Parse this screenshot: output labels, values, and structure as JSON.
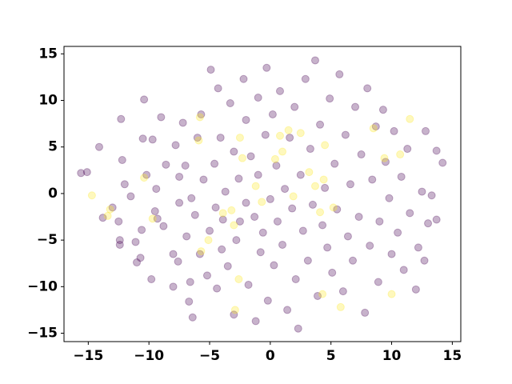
{
  "chart_data": {
    "type": "scatter",
    "xlim": [
      -17,
      15.7
    ],
    "ylim": [
      -15.9,
      15.8
    ],
    "xticks": [
      {
        "value": -15,
        "label": "−15"
      },
      {
        "value": -10,
        "label": "−10"
      },
      {
        "value": -5,
        "label": "−5"
      },
      0,
      5,
      10,
      15
    ],
    "yticks": [
      {
        "value": -15,
        "label": "−15"
      },
      {
        "value": -10,
        "label": "−10"
      },
      {
        "value": -5,
        "label": "−5"
      },
      0,
      5,
      10,
      15
    ],
    "opacity": 0.3,
    "series": [
      {
        "color": "#440154",
        "x": [
          -15.6,
          -15.1,
          -14.1,
          -13.8,
          -13,
          -12.5,
          -12.4,
          -12.4,
          -12.2,
          -12.3,
          -12,
          -11.5,
          -11.1,
          -11,
          -10.6,
          -10.7,
          -10.4,
          -10.5,
          -10.2,
          -9.8,
          -9.7,
          -9.5,
          -9.4,
          -9.3,
          -9,
          -8.8,
          -8.6,
          -8,
          -8,
          -7.8,
          -7.6,
          -7.5,
          -7.5,
          -7.2,
          -7,
          -6.9,
          -6.7,
          -6.6,
          -6.5,
          -6.4,
          -6.2,
          -6,
          -5.8,
          -5.7,
          -5.5,
          -5.2,
          -5,
          -4.9,
          -4.6,
          -4.5,
          -4.4,
          -4.3,
          -4.1,
          -4,
          -3.9,
          -3.7,
          -3.5,
          -3.3,
          -3,
          -3,
          -2.8,
          -2.6,
          -2.5,
          -2.2,
          -2,
          -2,
          -1.8,
          -1.6,
          -1.3,
          -1.2,
          -1,
          -1,
          -0.8,
          -0.6,
          -0.4,
          -0.3,
          -0.2,
          0,
          0.2,
          0.3,
          0.5,
          0.6,
          0.8,
          1,
          1.2,
          1.4,
          1.6,
          1.8,
          2,
          2.1,
          2.3,
          2.5,
          2.7,
          2.9,
          3.1,
          3.3,
          3.5,
          3.7,
          3.9,
          4.1,
          4.3,
          4.5,
          4.7,
          4.9,
          5.1,
          5.3,
          5.5,
          5.7,
          6,
          6.2,
          6.4,
          6.6,
          6.8,
          7,
          7.3,
          7.5,
          7.8,
          8,
          8.2,
          8.4,
          8.7,
          8.9,
          9,
          9.3,
          9.5,
          9.8,
          10,
          10.2,
          10.5,
          10.8,
          11,
          11.3,
          11.5,
          12,
          12.2,
          12.5,
          12.8,
          13,
          13.3,
          13.7,
          14.2,
          12.7,
          13.7
        ],
        "values": [
          2.2,
          2.3,
          5,
          -2.6,
          -1.5,
          -3,
          -5,
          -5.5,
          3.6,
          8,
          1,
          -0.3,
          -5.2,
          -7.4,
          -3.9,
          -6.9,
          10.1,
          5.9,
          2,
          -9.2,
          5.8,
          -1.9,
          0.5,
          -2.7,
          8.2,
          -3.5,
          3.1,
          -6.5,
          -10,
          5.2,
          -7.3,
          1.8,
          -1,
          7.6,
          3,
          -4.6,
          -11.6,
          -9.5,
          -0.5,
          -13.3,
          -2.3,
          6,
          -6.5,
          8.5,
          1.5,
          -8.8,
          -4,
          13.3,
          3.2,
          -1.5,
          -10.2,
          11.3,
          6,
          -6,
          -2.8,
          0.2,
          -7.8,
          9.7,
          -13,
          4.5,
          -5,
          1.6,
          -3,
          12.3,
          7.9,
          -1,
          -9.8,
          4,
          -2.5,
          -13.7,
          10.3,
          2,
          -6.3,
          -4.2,
          6.3,
          13.5,
          -11.5,
          -0.6,
          8.5,
          -7.7,
          3,
          -3,
          11,
          -5.5,
          0.5,
          -12.5,
          6,
          -1.6,
          9.3,
          -9.2,
          -14.5,
          2,
          -4,
          12.3,
          -7.2,
          4.8,
          -1.2,
          14.3,
          -11,
          7.4,
          -3.4,
          0.6,
          -5.8,
          10.2,
          -8.5,
          3.2,
          -1.7,
          12.8,
          -10.5,
          6.3,
          -4.6,
          1,
          -7.2,
          9.3,
          -2.5,
          4.2,
          -12.8,
          11.3,
          -5.6,
          1.5,
          7.2,
          -9.5,
          -3,
          9,
          3.4,
          -0.5,
          -6.5,
          6.7,
          -4.2,
          1.8,
          -8.2,
          4.8,
          -2.1,
          -10.3,
          -5.8,
          0.2,
          6.7,
          -3.2,
          -0.2,
          -2.8,
          3.3,
          -7.2,
          4.6
        ]
      },
      {
        "color": "#fde725",
        "x": [
          -14.7,
          -13.4,
          -13.2,
          -10.4,
          -9.7,
          -5.1,
          -5.7,
          -5.9,
          -5.8,
          -3.9,
          -3.2,
          -3,
          -2.9,
          -2.6,
          -2.5,
          -2.3,
          -1.2,
          -0.7,
          0.4,
          0.8,
          1,
          1.5,
          1.9,
          2.5,
          3.2,
          4.1,
          4.4,
          4.5,
          5.2,
          5.8,
          4.3,
          8.5,
          9.4,
          10,
          10.7,
          11.5,
          3.7
        ],
        "values": [
          -0.2,
          -2.4,
          -1.7,
          1.7,
          -2.7,
          -5,
          -6.2,
          5.7,
          8.2,
          -2.1,
          -1.8,
          -3.4,
          -12.5,
          -9.2,
          6,
          3.8,
          0.8,
          -0.9,
          3.7,
          6.2,
          4.5,
          6.8,
          -0.3,
          6.5,
          2.3,
          -2,
          1.5,
          5.2,
          -1.5,
          -12.2,
          -10.8,
          7,
          3.8,
          -10.8,
          4.2,
          8,
          0.8
        ]
      }
    ]
  }
}
